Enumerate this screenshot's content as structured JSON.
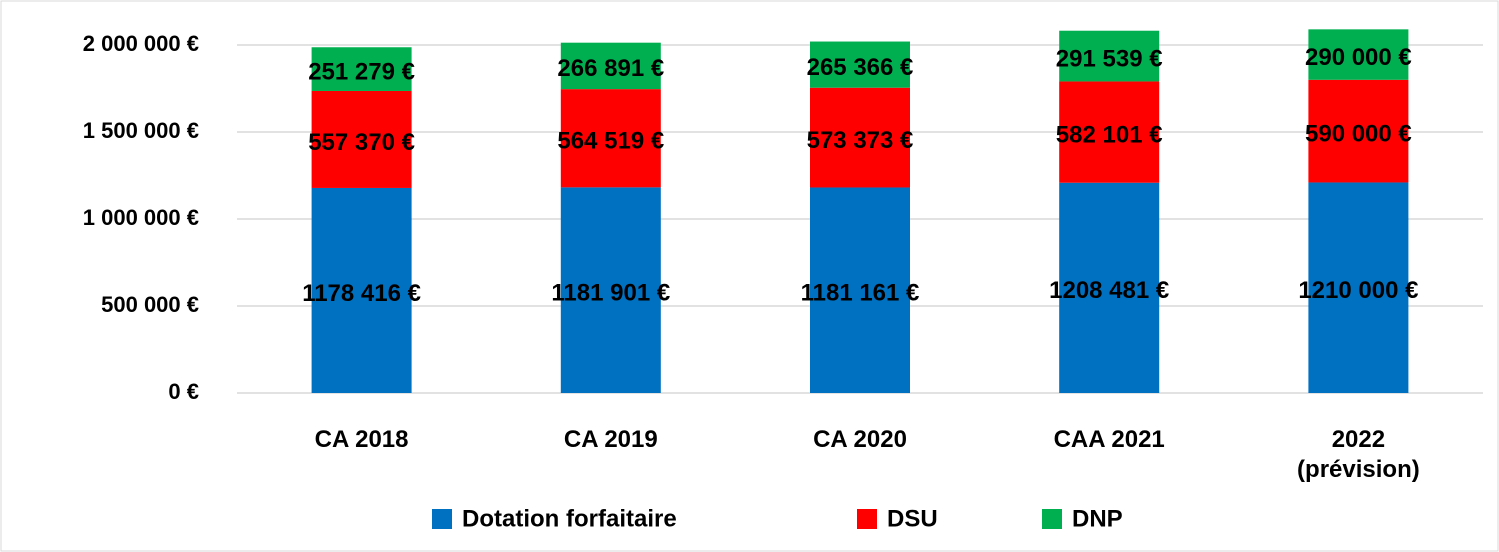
{
  "chart_data": {
    "type": "stacked_bar",
    "categories": [
      "CA 2018",
      "CA 2019",
      "CA 2020",
      "CAA 2021",
      "2022 (prévision)"
    ],
    "series": [
      {
        "name": "Dotation forfaitaire",
        "color": "#0070c0",
        "values": [
          1178416,
          1181901,
          1181161,
          1208481,
          1210000
        ],
        "value_labels": [
          "1178 416 €",
          "1181 901 €",
          "1181 161 €",
          "1208 481 €",
          "1210 000 €"
        ]
      },
      {
        "name": "DSU",
        "color": "#ff0000",
        "values": [
          557370,
          564519,
          573373,
          582101,
          590000
        ],
        "value_labels": [
          "557 370 €",
          "564 519 €",
          "573 373 €",
          "582 101 €",
          "590 000 €"
        ]
      },
      {
        "name": "DNP",
        "color": "#00b050",
        "values": [
          251279,
          266891,
          265366,
          291539,
          290000
        ],
        "value_labels": [
          "251 279 €",
          "266 891 €",
          "265 366 €",
          "291 539 €",
          "290 000 €"
        ]
      }
    ],
    "ylim": [
      0,
      2000000
    ],
    "yticks": [
      {
        "value": 0,
        "label": "0 €"
      },
      {
        "value": 500000,
        "label": "500 000 €"
      },
      {
        "value": 1000000,
        "label": "1 000 000 €"
      },
      {
        "value": 1500000,
        "label": "1 500 000 €"
      },
      {
        "value": 2000000,
        "label": "2 000 000 €"
      }
    ],
    "grid": true,
    "legend": "bottom"
  }
}
